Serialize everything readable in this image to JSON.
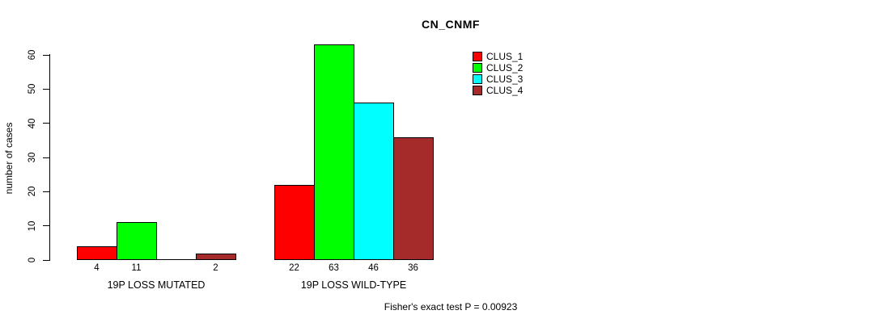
{
  "chart_data": {
    "type": "bar",
    "title": "CN_CNMF",
    "ylabel": "number of cases",
    "xlabel": "",
    "ylim": [
      0,
      60
    ],
    "yticks": [
      0,
      10,
      20,
      30,
      40,
      50,
      60
    ],
    "grid": false,
    "legend_position": "top-right",
    "series": [
      {
        "name": "CLUS_1",
        "color": "#FF0000"
      },
      {
        "name": "CLUS_2",
        "color": "#00FF00"
      },
      {
        "name": "CLUS_3",
        "color": "#00FFFF"
      },
      {
        "name": "CLUS_4",
        "color": "#A52A2A"
      }
    ],
    "groups": [
      {
        "label": "19P LOSS MUTATED",
        "values": [
          4,
          11,
          0,
          2
        ],
        "value_labels": [
          "4",
          "11",
          "",
          "2"
        ]
      },
      {
        "label": "19P LOSS WILD-TYPE",
        "values": [
          22,
          63,
          46,
          36
        ],
        "value_labels": [
          "22",
          "63",
          "46",
          "36"
        ]
      }
    ],
    "annotation": "Fisher's exact test P = 0.00923"
  }
}
